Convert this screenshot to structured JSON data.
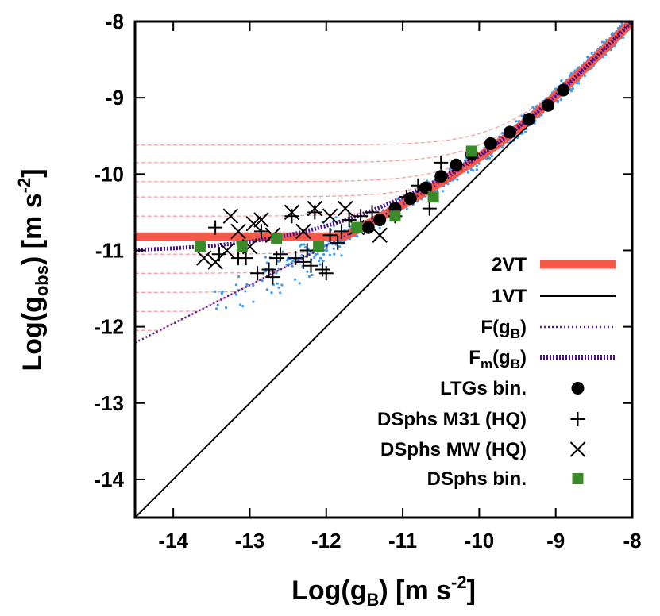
{
  "chart_data": {
    "type": "scatter",
    "title": "",
    "xlabel": {
      "main": "Log(g",
      "sub": "B",
      "mid": ") [m s",
      "sup": "-2",
      "end": "]"
    },
    "ylabel": {
      "main": "Log(g",
      "sub": "obs",
      "mid": ") [m s",
      "sup": "-2",
      "end": "]"
    },
    "xlim": [
      -14.5,
      -8
    ],
    "ylim": [
      -14.5,
      -8
    ],
    "xticks": [
      "-14",
      "-13",
      "-12",
      "-11",
      "-10",
      "-9",
      "-8"
    ],
    "yticks": [
      "-14",
      "-13",
      "-12",
      "-11",
      "-10",
      "-9",
      "-8"
    ],
    "legend_position": "bottom-right",
    "legend": [
      {
        "label": "2VT",
        "sub": "",
        "style": "thick-line",
        "color": "#f4594a"
      },
      {
        "label": "1VT",
        "sub": "",
        "style": "line",
        "color": "#000000"
      },
      {
        "label": "F(g",
        "sub": "B",
        "end": ")",
        "style": "dotted-line",
        "color": "#5b1a96"
      },
      {
        "label": "F",
        "sub": "m",
        "mid": "(g",
        "sub2": "B",
        "end": ")",
        "style": "thick-dotted-line",
        "color": "#4b0f86"
      },
      {
        "label": "LTGs bin.",
        "sub": "",
        "style": "filled-circle",
        "color": "#000000"
      },
      {
        "label": "DSphs M31 (HQ)",
        "sub": "",
        "style": "plus",
        "color": "#000000"
      },
      {
        "label": "DSphs MW (HQ)",
        "sub": "",
        "style": "cross",
        "color": "#000000"
      },
      {
        "label": "DSphs bin.",
        "sub": "",
        "style": "filled-square",
        "color": "#3a8a2a"
      }
    ],
    "colors": {
      "scatter": "#3a9bf0",
      "dashed_curves": "#f4a0a0",
      "two_vt": "#f4594a",
      "one_vt": "#000000",
      "f": "#5b1a96",
      "fm": "#4b0f86",
      "ltg": "#000000",
      "dsph_bin": "#3a8a2a"
    },
    "series": [
      {
        "name": "LTGs bin.",
        "points": [
          [
            -11.45,
            -10.7
          ],
          [
            -11.3,
            -10.6
          ],
          [
            -11.1,
            -10.45
          ],
          [
            -10.9,
            -10.32
          ],
          [
            -10.7,
            -10.18
          ],
          [
            -10.5,
            -10.03
          ],
          [
            -10.3,
            -9.88
          ],
          [
            -10.1,
            -9.74
          ],
          [
            -9.85,
            -9.6
          ],
          [
            -9.6,
            -9.45
          ],
          [
            -9.35,
            -9.28
          ],
          [
            -9.1,
            -9.1
          ],
          [
            -8.9,
            -8.9
          ]
        ]
      },
      {
        "name": "DSphs M31 (HQ)",
        "points": [
          [
            -13.45,
            -10.7
          ],
          [
            -13.4,
            -11.05
          ],
          [
            -13.15,
            -11.1
          ],
          [
            -13.05,
            -11.1
          ],
          [
            -12.9,
            -11.3
          ],
          [
            -12.85,
            -10.75
          ],
          [
            -12.75,
            -11.25
          ],
          [
            -12.7,
            -11.35
          ],
          [
            -12.65,
            -11.1
          ],
          [
            -12.6,
            -11.05
          ],
          [
            -12.45,
            -10.55
          ],
          [
            -12.4,
            -11.1
          ],
          [
            -12.3,
            -11.15
          ],
          [
            -12.25,
            -11.0
          ],
          [
            -12.2,
            -11.2
          ],
          [
            -12.15,
            -10.5
          ],
          [
            -12.05,
            -11.25
          ],
          [
            -12.0,
            -11.3
          ],
          [
            -11.95,
            -10.8
          ],
          [
            -11.85,
            -10.9
          ],
          [
            -11.8,
            -10.75
          ],
          [
            -11.7,
            -10.6
          ],
          [
            -11.55,
            -10.55
          ],
          [
            -11.4,
            -10.5
          ],
          [
            -11.1,
            -10.55
          ],
          [
            -10.95,
            -10.3
          ],
          [
            -10.8,
            -10.15
          ],
          [
            -10.65,
            -10.45
          ],
          [
            -10.5,
            -9.85
          ]
        ]
      },
      {
        "name": "DSphs MW (HQ)",
        "points": [
          [
            -13.6,
            -11.1
          ],
          [
            -13.45,
            -11.15
          ],
          [
            -13.3,
            -11.0
          ],
          [
            -13.25,
            -10.55
          ],
          [
            -13.15,
            -10.75
          ],
          [
            -13.0,
            -10.95
          ],
          [
            -12.95,
            -10.65
          ],
          [
            -12.85,
            -10.6
          ],
          [
            -12.7,
            -10.8
          ],
          [
            -12.45,
            -10.5
          ],
          [
            -12.3,
            -10.75
          ],
          [
            -12.15,
            -10.45
          ],
          [
            -11.95,
            -10.55
          ],
          [
            -11.75,
            -10.45
          ],
          [
            -11.6,
            -10.7
          ],
          [
            -11.3,
            -10.8
          ]
        ]
      },
      {
        "name": "DSphs bin.",
        "points": [
          [
            -13.65,
            -10.95
          ],
          [
            -13.1,
            -10.95
          ],
          [
            -12.65,
            -10.85
          ],
          [
            -12.1,
            -10.95
          ],
          [
            -11.6,
            -10.7
          ],
          [
            -11.1,
            -10.55
          ],
          [
            -10.6,
            -10.3
          ],
          [
            -10.1,
            -9.7
          ]
        ]
      }
    ],
    "model_curves": {
      "one_vt": "y = x",
      "two_vt": "y = x - log10(1 - exp(-sqrt(10^x / 1.2e-10))), floored at -10.82",
      "f": "y = x - log10(1 - exp(-sqrt(10^x / 1.2e-10)))",
      "fm": "y = x - log10(1 - exp(-sqrt(10^x / 1.2e-10))), floored at -11.0",
      "dashed_family_floors": [
        -9.62,
        -9.85,
        -10.1,
        -10.3,
        -10.55,
        -10.8,
        -11.05,
        -11.3,
        -11.55,
        -11.8,
        -12.05
      ]
    },
    "scatter_cloud": {
      "name": "individual rotation-curve points",
      "x_range": [
        -13.5,
        -8.1
      ],
      "note": "dense cloud following the radial acceleration relation"
    }
  }
}
